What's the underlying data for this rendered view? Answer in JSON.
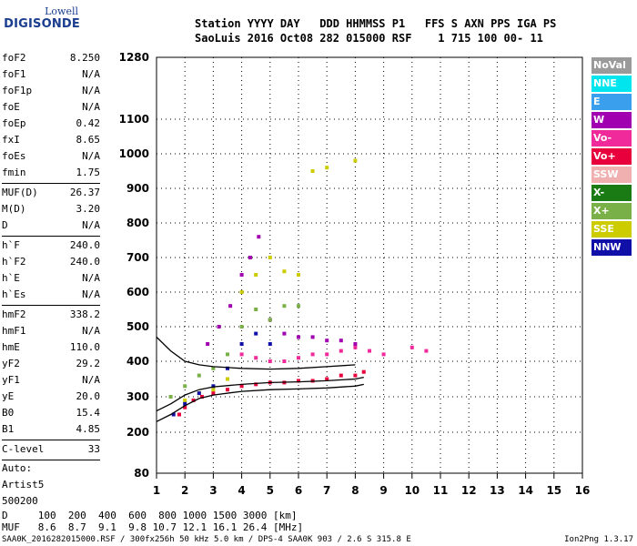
{
  "logo": {
    "line1": "Lowell",
    "line2": "DIGISONDE"
  },
  "header": {
    "line1": "Station YYYY DAY   DDD HHMMSS P1   FFS S AXN PPS IGA PS",
    "line2": "SaoLuis 2016 Oct08 282 015000 RSF    1 715 100 00- 11"
  },
  "params": [
    {
      "k": "foF2",
      "v": "8.250"
    },
    {
      "k": "foF1",
      "v": "N/A"
    },
    {
      "k": "foF1p",
      "v": "N/A"
    },
    {
      "k": "foE",
      "v": "N/A"
    },
    {
      "k": "foEp",
      "v": "0.42"
    },
    {
      "k": "fxI",
      "v": "8.65"
    },
    {
      "k": "foEs",
      "v": "N/A"
    },
    {
      "k": "fmin",
      "v": "1.75"
    },
    {
      "k": "MUF(D)",
      "v": "26.37",
      "sep": true
    },
    {
      "k": "M(D)",
      "v": "3.20"
    },
    {
      "k": "D",
      "v": "N/A"
    },
    {
      "k": "h`F",
      "v": "240.0",
      "sep": true
    },
    {
      "k": "h`F2",
      "v": "240.0"
    },
    {
      "k": "h`E",
      "v": "N/A"
    },
    {
      "k": "h`Es",
      "v": "N/A"
    },
    {
      "k": "hmF2",
      "v": "338.2",
      "sep": true
    },
    {
      "k": "hmF1",
      "v": "N/A"
    },
    {
      "k": "hmE",
      "v": "110.0"
    },
    {
      "k": "yF2",
      "v": "29.2"
    },
    {
      "k": "yF1",
      "v": "N/A"
    },
    {
      "k": "yE",
      "v": "20.0"
    },
    {
      "k": "B0",
      "v": "15.4"
    },
    {
      "k": "B1",
      "v": "4.85"
    },
    {
      "k": "C-level",
      "v": "33",
      "sep": true
    }
  ],
  "auto": [
    "Auto:",
    "Artist5",
    "500200"
  ],
  "legend": [
    {
      "label": "NoVal",
      "color": "#9a9a9a"
    },
    {
      "label": "NNE",
      "color": "#00e5ee"
    },
    {
      "label": "E",
      "color": "#3aa0ee"
    },
    {
      "label": "W",
      "color": "#a000b0"
    },
    {
      "label": "Vo-",
      "color": "#f02a9a"
    },
    {
      "label": "Vo+",
      "color": "#e8003c"
    },
    {
      "label": "SSW",
      "color": "#f0b0b0"
    },
    {
      "label": "X-",
      "color": "#1a7a14"
    },
    {
      "label": "X+",
      "color": "#7ab048"
    },
    {
      "label": "SSE",
      "color": "#cccc00"
    },
    {
      "label": "NNW",
      "color": "#1010a8"
    }
  ],
  "bottom": {
    "line1": "D     100  200  400  600  800 1000 1500 3000 [km]",
    "line2": "MUF   8.6  8.7  9.1  9.8 10.7 12.1 16.1 26.4 [MHz]"
  },
  "footer": "SAA0K_2016282015000.RSF / 300fx256h 50 kHz 5.0 km / DPS-4 SAA0K 903 / 2.6 S 315.8 E",
  "version": "Ion2Png 1.3.17",
  "chart_data": {
    "type": "scatter",
    "title": "",
    "xlabel": "",
    "ylabel": "",
    "xlim": [
      1,
      16
    ],
    "ylim": [
      80,
      1280
    ],
    "x_ticks": [
      1,
      2,
      3,
      4,
      5,
      6,
      7,
      8,
      9,
      10,
      11,
      12,
      13,
      14,
      15,
      16
    ],
    "y_ticks": [
      80,
      200,
      300,
      400,
      500,
      600,
      700,
      800,
      900,
      1000,
      1100,
      1280
    ],
    "grid": true,
    "y_scale": "non-linear",
    "series": [
      {
        "color_key": "Vo+",
        "points": [
          [
            1.8,
            250
          ],
          [
            2.0,
            270
          ],
          [
            2.3,
            290
          ],
          [
            2.6,
            300
          ],
          [
            3.0,
            310
          ],
          [
            3.5,
            320
          ],
          [
            4.0,
            330
          ],
          [
            4.5,
            335
          ],
          [
            5.0,
            340
          ],
          [
            5.5,
            340
          ],
          [
            6.0,
            345
          ],
          [
            6.5,
            345
          ],
          [
            7.0,
            350
          ],
          [
            7.5,
            360
          ],
          [
            8.0,
            360
          ],
          [
            8.3,
            370
          ]
        ]
      },
      {
        "color_key": "Vo-",
        "points": [
          [
            4.0,
            420
          ],
          [
            4.5,
            410
          ],
          [
            5.0,
            400
          ],
          [
            5.5,
            400
          ],
          [
            6.0,
            410
          ],
          [
            6.5,
            420
          ],
          [
            7.0,
            420
          ],
          [
            7.5,
            430
          ],
          [
            8.0,
            440
          ],
          [
            8.5,
            430
          ],
          [
            9.0,
            420
          ],
          [
            10.0,
            440
          ],
          [
            10.5,
            430
          ]
        ]
      },
      {
        "color_key": "W",
        "points": [
          [
            2.8,
            450
          ],
          [
            3.2,
            500
          ],
          [
            3.6,
            560
          ],
          [
            4.0,
            650
          ],
          [
            4.3,
            700
          ],
          [
            4.6,
            760
          ],
          [
            5.0,
            520
          ],
          [
            5.5,
            480
          ],
          [
            6.0,
            470
          ],
          [
            6.5,
            470
          ],
          [
            7.0,
            460
          ],
          [
            7.5,
            460
          ],
          [
            8.0,
            450
          ]
        ]
      },
      {
        "color_key": "SSE",
        "points": [
          [
            2.0,
            290
          ],
          [
            2.5,
            310
          ],
          [
            3.0,
            320
          ],
          [
            3.5,
            350
          ],
          [
            4.0,
            600
          ],
          [
            4.5,
            650
          ],
          [
            5.0,
            700
          ],
          [
            5.5,
            660
          ],
          [
            6.0,
            650
          ],
          [
            6.5,
            950
          ],
          [
            7.0,
            960
          ],
          [
            8.0,
            980
          ]
        ]
      },
      {
        "color_key": "X+",
        "points": [
          [
            1.5,
            300
          ],
          [
            2.0,
            330
          ],
          [
            2.5,
            360
          ],
          [
            3.0,
            380
          ],
          [
            3.5,
            420
          ],
          [
            4.0,
            500
          ],
          [
            4.5,
            550
          ],
          [
            5.0,
            520
          ],
          [
            5.5,
            560
          ],
          [
            6.0,
            560
          ]
        ]
      },
      {
        "color_key": "NNW",
        "points": [
          [
            1.6,
            250
          ],
          [
            2.0,
            280
          ],
          [
            2.5,
            310
          ],
          [
            3.0,
            330
          ],
          [
            3.5,
            380
          ],
          [
            4.0,
            450
          ],
          [
            4.5,
            480
          ],
          [
            5.0,
            450
          ]
        ]
      }
    ],
    "profile_curves": [
      {
        "name": "",
        "points": [
          [
            1.0,
            230
          ],
          [
            1.5,
            250
          ],
          [
            2.0,
            275
          ],
          [
            2.5,
            295
          ],
          [
            3.0,
            305
          ],
          [
            4.0,
            315
          ],
          [
            5.0,
            320
          ],
          [
            6.0,
            322
          ],
          [
            7.0,
            325
          ],
          [
            8.0,
            330
          ],
          [
            8.3,
            335
          ]
        ]
      },
      {
        "name": "",
        "points": [
          [
            1.0,
            260
          ],
          [
            1.5,
            280
          ],
          [
            2.0,
            305
          ],
          [
            2.5,
            320
          ],
          [
            3.0,
            328
          ],
          [
            4.0,
            335
          ],
          [
            5.0,
            340
          ],
          [
            6.0,
            342
          ],
          [
            7.0,
            345
          ],
          [
            8.0,
            350
          ],
          [
            8.3,
            355
          ]
        ]
      },
      {
        "name": "",
        "points": [
          [
            1.0,
            470
          ],
          [
            1.5,
            430
          ],
          [
            2.0,
            400
          ],
          [
            2.5,
            390
          ],
          [
            3.0,
            385
          ],
          [
            4.0,
            380
          ],
          [
            5.0,
            378
          ],
          [
            6.0,
            380
          ],
          [
            7.0,
            385
          ],
          [
            8.0,
            390
          ]
        ]
      }
    ]
  }
}
